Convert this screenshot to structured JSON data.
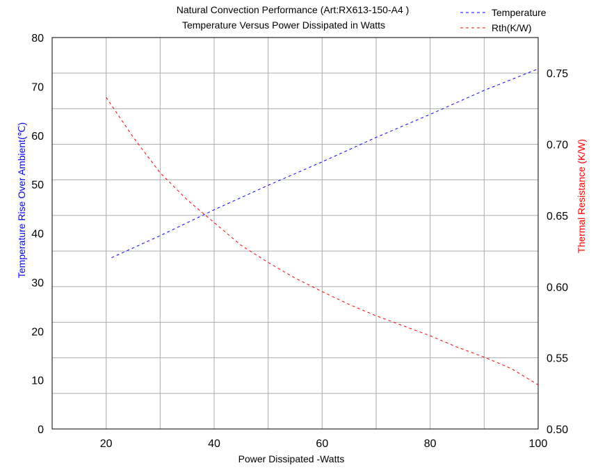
{
  "chart_data": {
    "type": "line",
    "title": "Natural Convection Performance  (Art:RX613-150-A4 )",
    "subtitle": "Temperature Versus Power Dissipated in Watts",
    "xlabel": "Power Dissipated -Watts",
    "ylabel_left": "Temperature Rise Over Ambient(℃)",
    "ylabel_right": "Thermal Resistance (K/W)",
    "xlim": [
      10,
      100
    ],
    "ylim_left": [
      0,
      80
    ],
    "ylim_right": [
      0.5,
      0.775
    ],
    "x_ticks": [
      {
        "value": 20,
        "label": "20"
      },
      {
        "value": 40,
        "label": "40"
      },
      {
        "value": 60,
        "label": "60"
      },
      {
        "value": 80,
        "label": "80"
      },
      {
        "value": 100,
        "label": "100"
      }
    ],
    "y_left_ticks": [
      {
        "value": 0,
        "label": "0"
      },
      {
        "value": 10,
        "label": "10"
      },
      {
        "value": 20,
        "label": "20"
      },
      {
        "value": 30,
        "label": "30"
      },
      {
        "value": 40,
        "label": "40"
      },
      {
        "value": 50,
        "label": "50"
      },
      {
        "value": 60,
        "label": "60"
      },
      {
        "value": 70,
        "label": "70"
      },
      {
        "value": 80,
        "label": "80"
      }
    ],
    "y_right_ticks": [
      {
        "value": 0.5,
        "label": "0.50"
      },
      {
        "value": 0.55,
        "label": "0.55"
      },
      {
        "value": 0.6,
        "label": "0.60"
      },
      {
        "value": 0.65,
        "label": "0.65"
      },
      {
        "value": 0.7,
        "label": "0.70"
      },
      {
        "value": 0.75,
        "label": "0.75"
      }
    ],
    "grid": true,
    "legend_position": "top-right",
    "series": [
      {
        "name": "Temperature",
        "axis": "left",
        "color": "#0000ff",
        "style": "dashed",
        "x": [
          21,
          30,
          40,
          50,
          60,
          70,
          80,
          90,
          100
        ],
        "y": [
          35.0,
          39.5,
          44.8,
          49.8,
          54.6,
          59.6,
          64.3,
          69.2,
          73.6
        ]
      },
      {
        "name": "Rth(K/W)",
        "axis": "right",
        "color": "#ff0000",
        "style": "dashed",
        "x": [
          20,
          25,
          30,
          35,
          40,
          45,
          50,
          55,
          60,
          65,
          70,
          75,
          80,
          85,
          90,
          95,
          100
        ],
        "y": [
          0.733,
          0.705,
          0.68,
          0.661,
          0.645,
          0.629,
          0.617,
          0.606,
          0.5965,
          0.5875,
          0.5795,
          0.5725,
          0.5655,
          0.5575,
          0.5505,
          0.5425,
          0.531
        ]
      }
    ]
  }
}
